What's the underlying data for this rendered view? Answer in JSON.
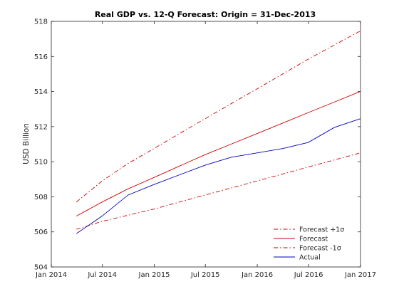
{
  "chart_data": {
    "type": "line",
    "title": "Real GDP vs. 12-Q Forecast: Origin = 31-Dec-2013",
    "xlabel": "",
    "ylabel": "USD Billion",
    "ylim": [
      504,
      518
    ],
    "yticks": [
      504,
      506,
      508,
      510,
      512,
      514,
      516,
      518
    ],
    "xlim": [
      "2014-01-01",
      "2017-01-01"
    ],
    "xticks": [
      {
        "value": "2014-01-01",
        "label": "Jan 2014"
      },
      {
        "value": "2014-07-01",
        "label": "Jul 2014"
      },
      {
        "value": "2015-01-01",
        "label": "Jan 2015"
      },
      {
        "value": "2015-07-01",
        "label": "Jul 2015"
      },
      {
        "value": "2016-01-01",
        "label": "Jan 2016"
      },
      {
        "value": "2016-07-01",
        "label": "Jul 2016"
      },
      {
        "value": "2017-01-01",
        "label": "Jan 2017"
      }
    ],
    "grid": false,
    "legend_position": "bottom-right",
    "x": [
      "2014-03-31",
      "2014-06-30",
      "2014-09-30",
      "2014-12-31",
      "2015-03-31",
      "2015-06-30",
      "2015-09-30",
      "2015-12-31",
      "2016-03-31",
      "2016-06-30",
      "2016-09-30",
      "2016-12-31"
    ],
    "series": [
      {
        "name": "Forecast +1σ",
        "color": "#cc0000",
        "style": "dashdot",
        "values": [
          507.7,
          508.9,
          509.9,
          510.75,
          511.6,
          512.45,
          513.3,
          514.15,
          515.0,
          515.85,
          516.65,
          517.45
        ]
      },
      {
        "name": "Forecast",
        "color": "#cc0000",
        "style": "solid",
        "values": [
          506.9,
          507.7,
          508.45,
          509.1,
          509.75,
          510.4,
          511.0,
          511.6,
          512.2,
          512.8,
          513.4,
          514.0
        ]
      },
      {
        "name": "Forecast -1σ",
        "color": "#cc0000",
        "style": "dashdot",
        "values": [
          506.15,
          506.6,
          506.95,
          507.3,
          507.7,
          508.1,
          508.5,
          508.9,
          509.3,
          509.7,
          510.1,
          510.5
        ]
      },
      {
        "name": "Actual",
        "color": "#0000bb",
        "style": "solid",
        "values": [
          505.9,
          506.9,
          508.1,
          508.7,
          509.25,
          509.8,
          510.25,
          510.5,
          510.75,
          511.1,
          511.95,
          512.45
        ]
      }
    ]
  }
}
